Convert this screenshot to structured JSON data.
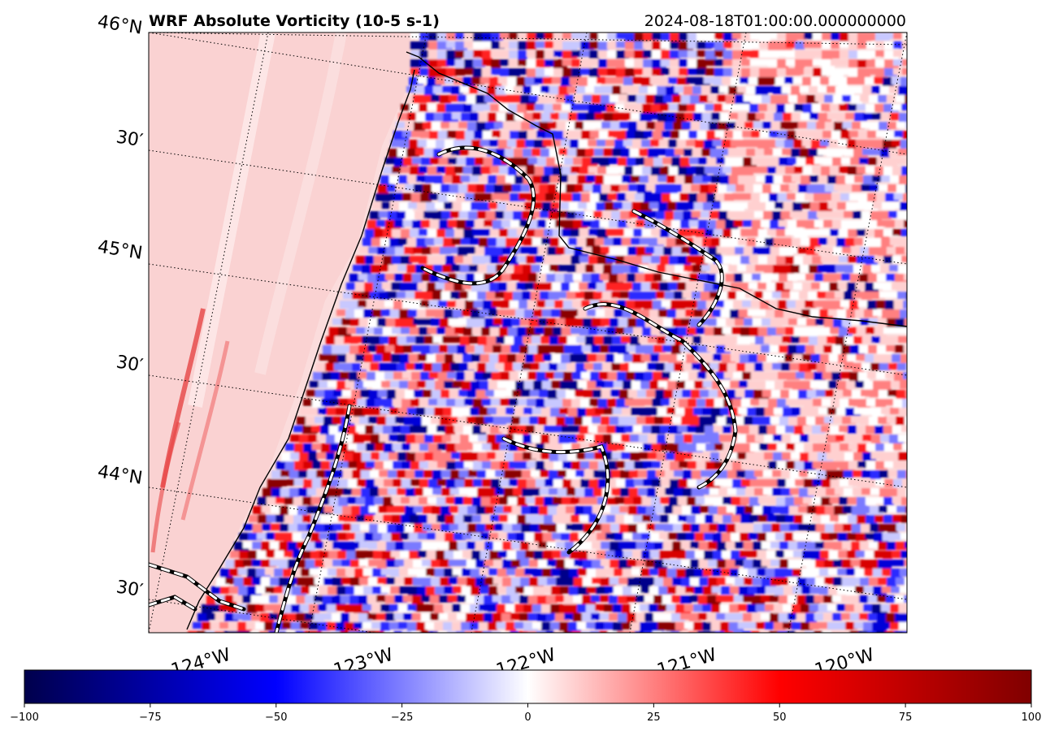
{
  "title": "WRF Absolute Vorticity (10-5 s-1)",
  "timestamp": "2024-08-18T01:00:00.000000000",
  "map": {
    "field": "absolute vorticity",
    "units": "10-5 s-1",
    "colormap": "seismic",
    "lat_labels": [
      "46°N",
      "30′",
      "45°N",
      "30′",
      "44°N",
      "30′"
    ],
    "lon_labels": [
      "124°W",
      "123°W",
      "122°W",
      "121°W",
      "120°W"
    ],
    "gridlines": "dotted",
    "coastline_color": "#000000",
    "boundary_style": "black-white dashed"
  },
  "colorbar": {
    "min": -100,
    "max": 100,
    "ticks": [
      "−100",
      "−75",
      "−50",
      "−25",
      "0",
      "25",
      "50",
      "75",
      "100"
    ],
    "colors": [
      "#00004c",
      "#0000ff",
      "#ffffff",
      "#ff0000",
      "#800000"
    ]
  }
}
